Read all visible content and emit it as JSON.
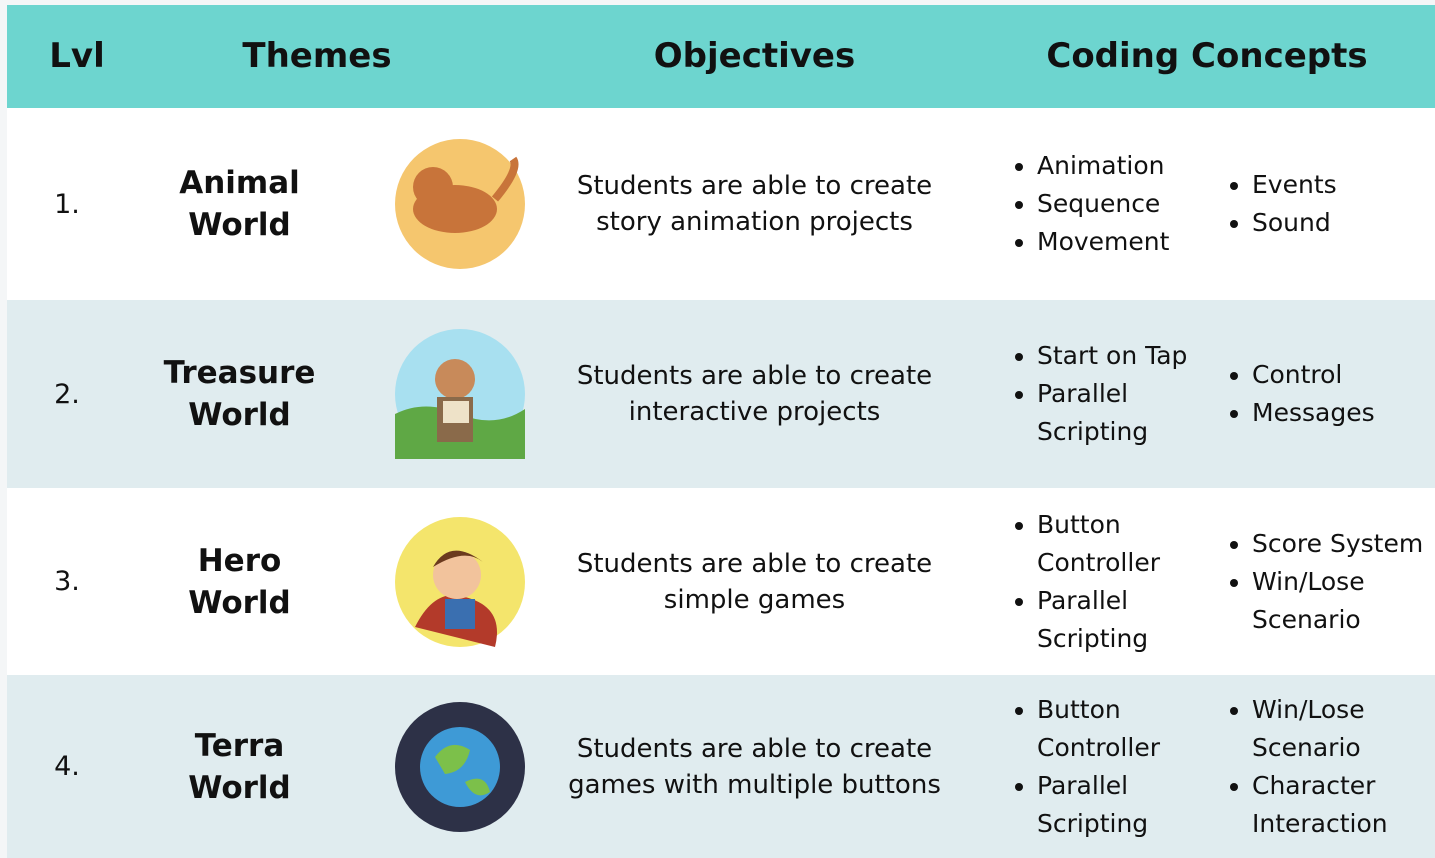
{
  "header": [
    "Lvl",
    "Themes",
    "Objectives",
    "Coding Concepts"
  ],
  "rows": [
    {
      "level": "1.",
      "theme": "Animal World",
      "objective": "Students are able to create story animation projects",
      "concepts": [
        [
          "Animation",
          "Sequence",
          "Movement"
        ],
        [
          "Events",
          "Sound"
        ]
      ]
    },
    {
      "level": "2.",
      "theme": "Treasure World",
      "objective": "Students are able to create interactive projects",
      "concepts": [
        [
          "Start on Tap",
          "Parallel Scripting"
        ],
        [
          "Control",
          "Messages"
        ]
      ]
    },
    {
      "level": "3.",
      "theme": "Hero World",
      "objective": "Students are able to create simple games",
      "concepts": [
        [
          "Button Controller",
          "Parallel Scripting"
        ],
        [
          "Score System",
          "Win/Lose Scenario"
        ]
      ]
    },
    {
      "level": "4.",
      "theme": "Terra World",
      "objective": "Students are able to create games with multiple buttons",
      "concepts": [
        [
          "Button Controller",
          "Parallel Scripting"
        ],
        [
          "Win/Lose Scenario",
          "Character Interaction"
        ]
      ]
    }
  ]
}
